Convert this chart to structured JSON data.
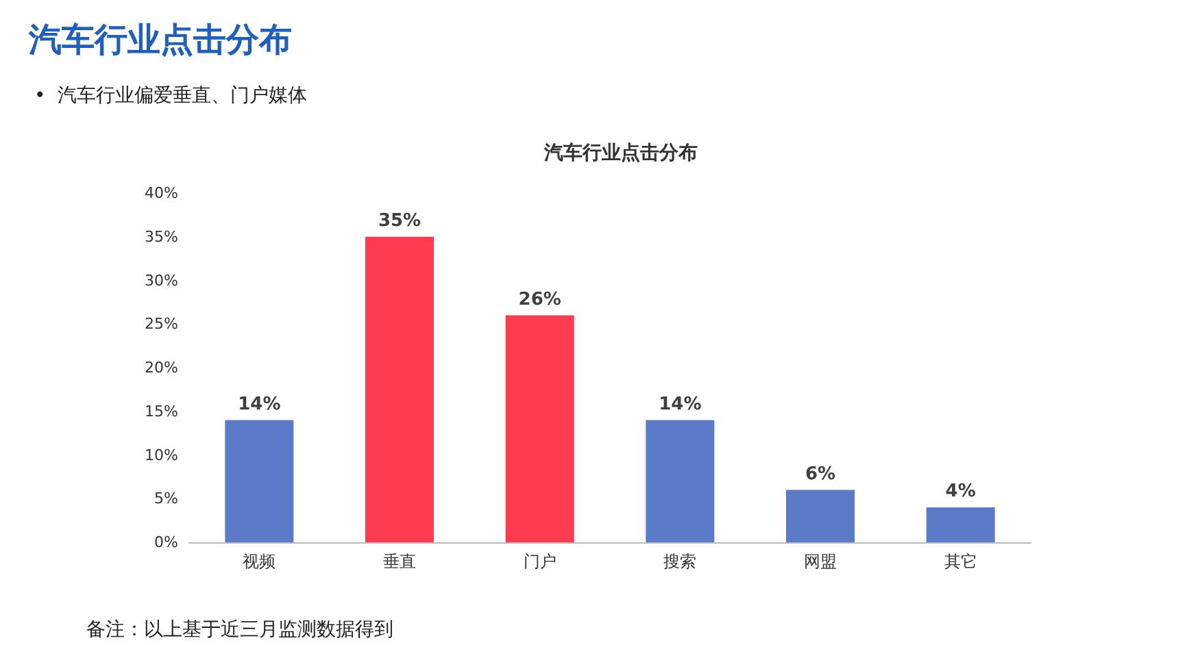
{
  "chart_data": {
    "type": "bar",
    "title": "汽车行业点击分布",
    "subtitle": "•  汽车行业偏爱垂直、门户媒体",
    "annotations": [
      "汽车行业点击分布",
      "备注：以上基于近三月监测数据得到"
    ],
    "categories": [
      "视频",
      "垂直",
      "门户",
      "搜索",
      "网盟",
      "其它"
    ],
    "values": [
      14,
      35,
      26,
      14,
      6,
      4
    ],
    "colors": [
      "#5b7bc8",
      "#ff3b50",
      "#ff3b50",
      "#5b7bc8",
      "#5b7bc8",
      "#5b7bc8"
    ],
    "value_labels": [
      "14%",
      "35%",
      "26%",
      "14%",
      "6%",
      "4%"
    ],
    "ylim": [
      0,
      40
    ],
    "yticks": [
      {
        "value": 0,
        "label": "0%"
      },
      {
        "value": 5,
        "label": "5%"
      },
      {
        "value": 10,
        "label": "10%"
      },
      {
        "value": 15,
        "label": "15%"
      },
      {
        "value": 20,
        "label": "20%"
      },
      {
        "value": 25,
        "label": "25%"
      },
      {
        "value": 30,
        "label": "30%"
      },
      {
        "value": 35,
        "label": "35%"
      },
      {
        "value": 40,
        "label": "40%"
      }
    ],
    "grid": false
  }
}
